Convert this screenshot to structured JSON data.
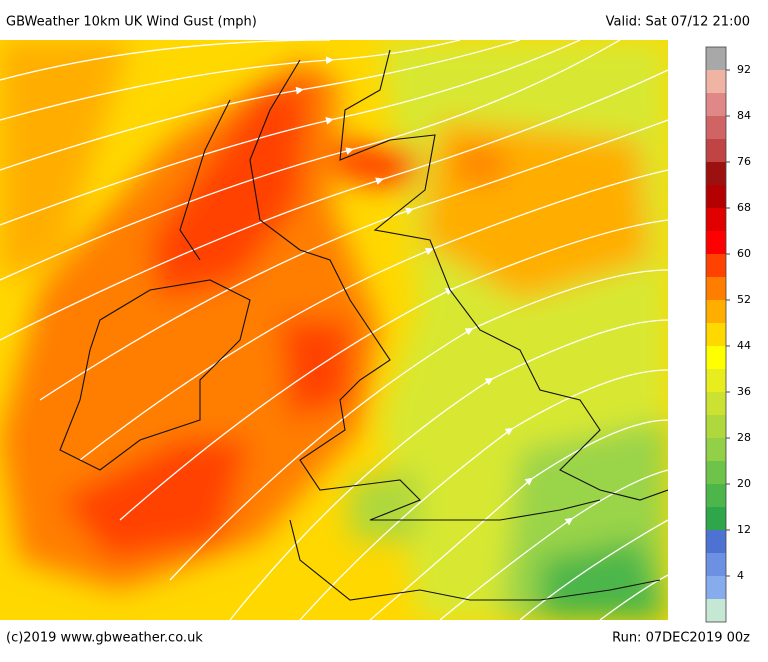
{
  "header": {
    "title": "GBWeather 10km UK Wind Gust (mph)",
    "valid": "Valid: Sat 07/12 21:00"
  },
  "footer": {
    "credit": "(c)2019 www.gbweather.co.uk",
    "run": "Run: 07DEC2019 00z"
  },
  "colorbar": {
    "range": [
      -4,
      96
    ],
    "ticks": [
      92,
      84,
      76,
      68,
      60,
      52,
      44,
      36,
      28,
      20,
      12,
      4
    ],
    "colors": [
      "#c4e8d4",
      "#86acee",
      "#6c90e2",
      "#4e72d2",
      "#2ea64a",
      "#4cb64a",
      "#6ec44a",
      "#92d048",
      "#aed83c",
      "#cce232",
      "#e8ee1e",
      "#ffff00",
      "#ffd800",
      "#ffae00",
      "#ff7e00",
      "#ff4200",
      "#ff0000",
      "#e00000",
      "#b40000",
      "#9c1010",
      "#c04444",
      "#d06464",
      "#e08888",
      "#f0b4a4",
      "#a8a8a8"
    ]
  }
}
